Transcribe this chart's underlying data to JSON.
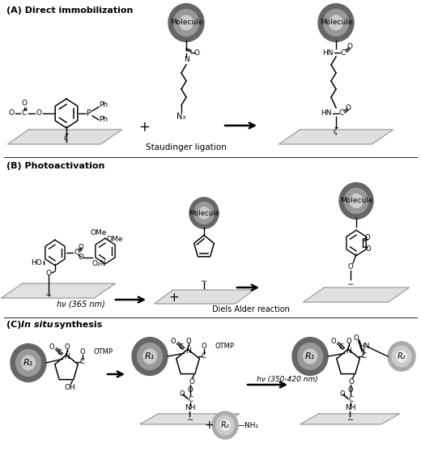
{
  "bg_color": "#ffffff",
  "text_color": "#000000",
  "section_A_title": "(A) Direct immobilization",
  "section_B_title": "(B) Photoactivation",
  "section_C_title": "(C) In situ synthesis",
  "label_staudinger": "Staudinger ligation",
  "label_diels": "Diels Alder reaction",
  "label_hv1": "hν (365 nm)",
  "label_hv2": "hν (350-420 nm)",
  "platform_fill": "#e0e0e0",
  "platform_edge": "#999999",
  "sphere_dark_outer": "#666666",
  "sphere_dark_mid": "#999999",
  "sphere_dark_hi": "#cccccc",
  "sphere_light_outer": "#aaaaaa",
  "sphere_light_mid": "#cccccc",
  "sphere_light_hi": "#eeeeee",
  "fig_w": 5.2,
  "fig_h": 5.84,
  "dpi": 100
}
